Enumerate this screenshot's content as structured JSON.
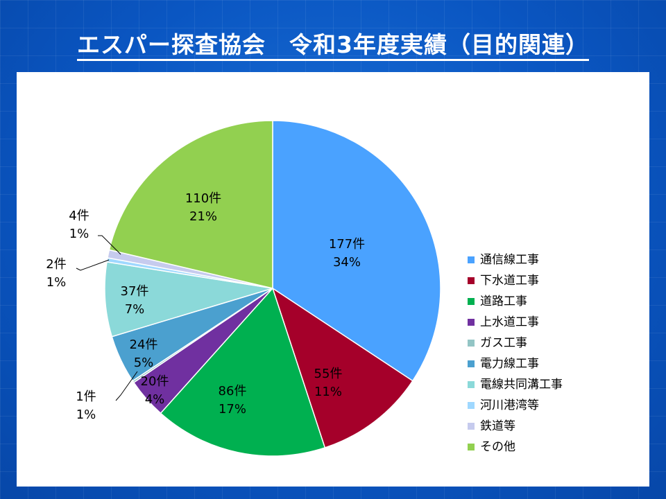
{
  "page": {
    "title": "エスパー探査協会　令和3年度実績（目的関連）"
  },
  "chart_data": {
    "type": "pie",
    "title": "エスパー探査協会　令和3年度実績（目的関連）",
    "start_angle": "12 o'clock",
    "direction": "clockwise",
    "legend_position": "right",
    "slices": [
      {
        "name": "通信線工事",
        "count": 177,
        "count_label": "177件",
        "pct_label": "34%",
        "color": "#4aa2ff",
        "label_color": "#000000"
      },
      {
        "name": "下水道工事",
        "count": 55,
        "count_label": "55件",
        "pct_label": "11%",
        "color": "#a5002a",
        "label_color": "#000000"
      },
      {
        "name": "道路工事",
        "count": 86,
        "count_label": "86件",
        "pct_label": "17%",
        "color": "#00b050",
        "label_color": "#000000"
      },
      {
        "name": "上水道工事",
        "count": 20,
        "count_label": "20件",
        "pct_label": "4%",
        "color": "#7030a0",
        "label_color": "#000000"
      },
      {
        "name": "ガス工事",
        "count": 1,
        "count_label": "1件",
        "pct_label": "1%",
        "color": "#93c5c5",
        "label_color": "#000000"
      },
      {
        "name": "電力線工事",
        "count": 24,
        "count_label": "24件",
        "pct_label": "5%",
        "color": "#4ba0cf",
        "label_color": "#000000"
      },
      {
        "name": "電線共同溝工事",
        "count": 37,
        "count_label": "37件",
        "pct_label": "7%",
        "color": "#8bd9d9",
        "label_color": "#000000"
      },
      {
        "name": "河川港湾等",
        "count": 2,
        "count_label": "2件",
        "pct_label": "1%",
        "color": "#9fd8ff",
        "label_color": "#000000"
      },
      {
        "name": "鉄道等",
        "count": 4,
        "count_label": "4件",
        "pct_label": "1%",
        "color": "#c6cbee",
        "label_color": "#000000"
      },
      {
        "name": "その他",
        "count": 110,
        "count_label": "110件",
        "pct_label": "21%",
        "color": "#92d050",
        "label_color": "#000000"
      }
    ]
  }
}
